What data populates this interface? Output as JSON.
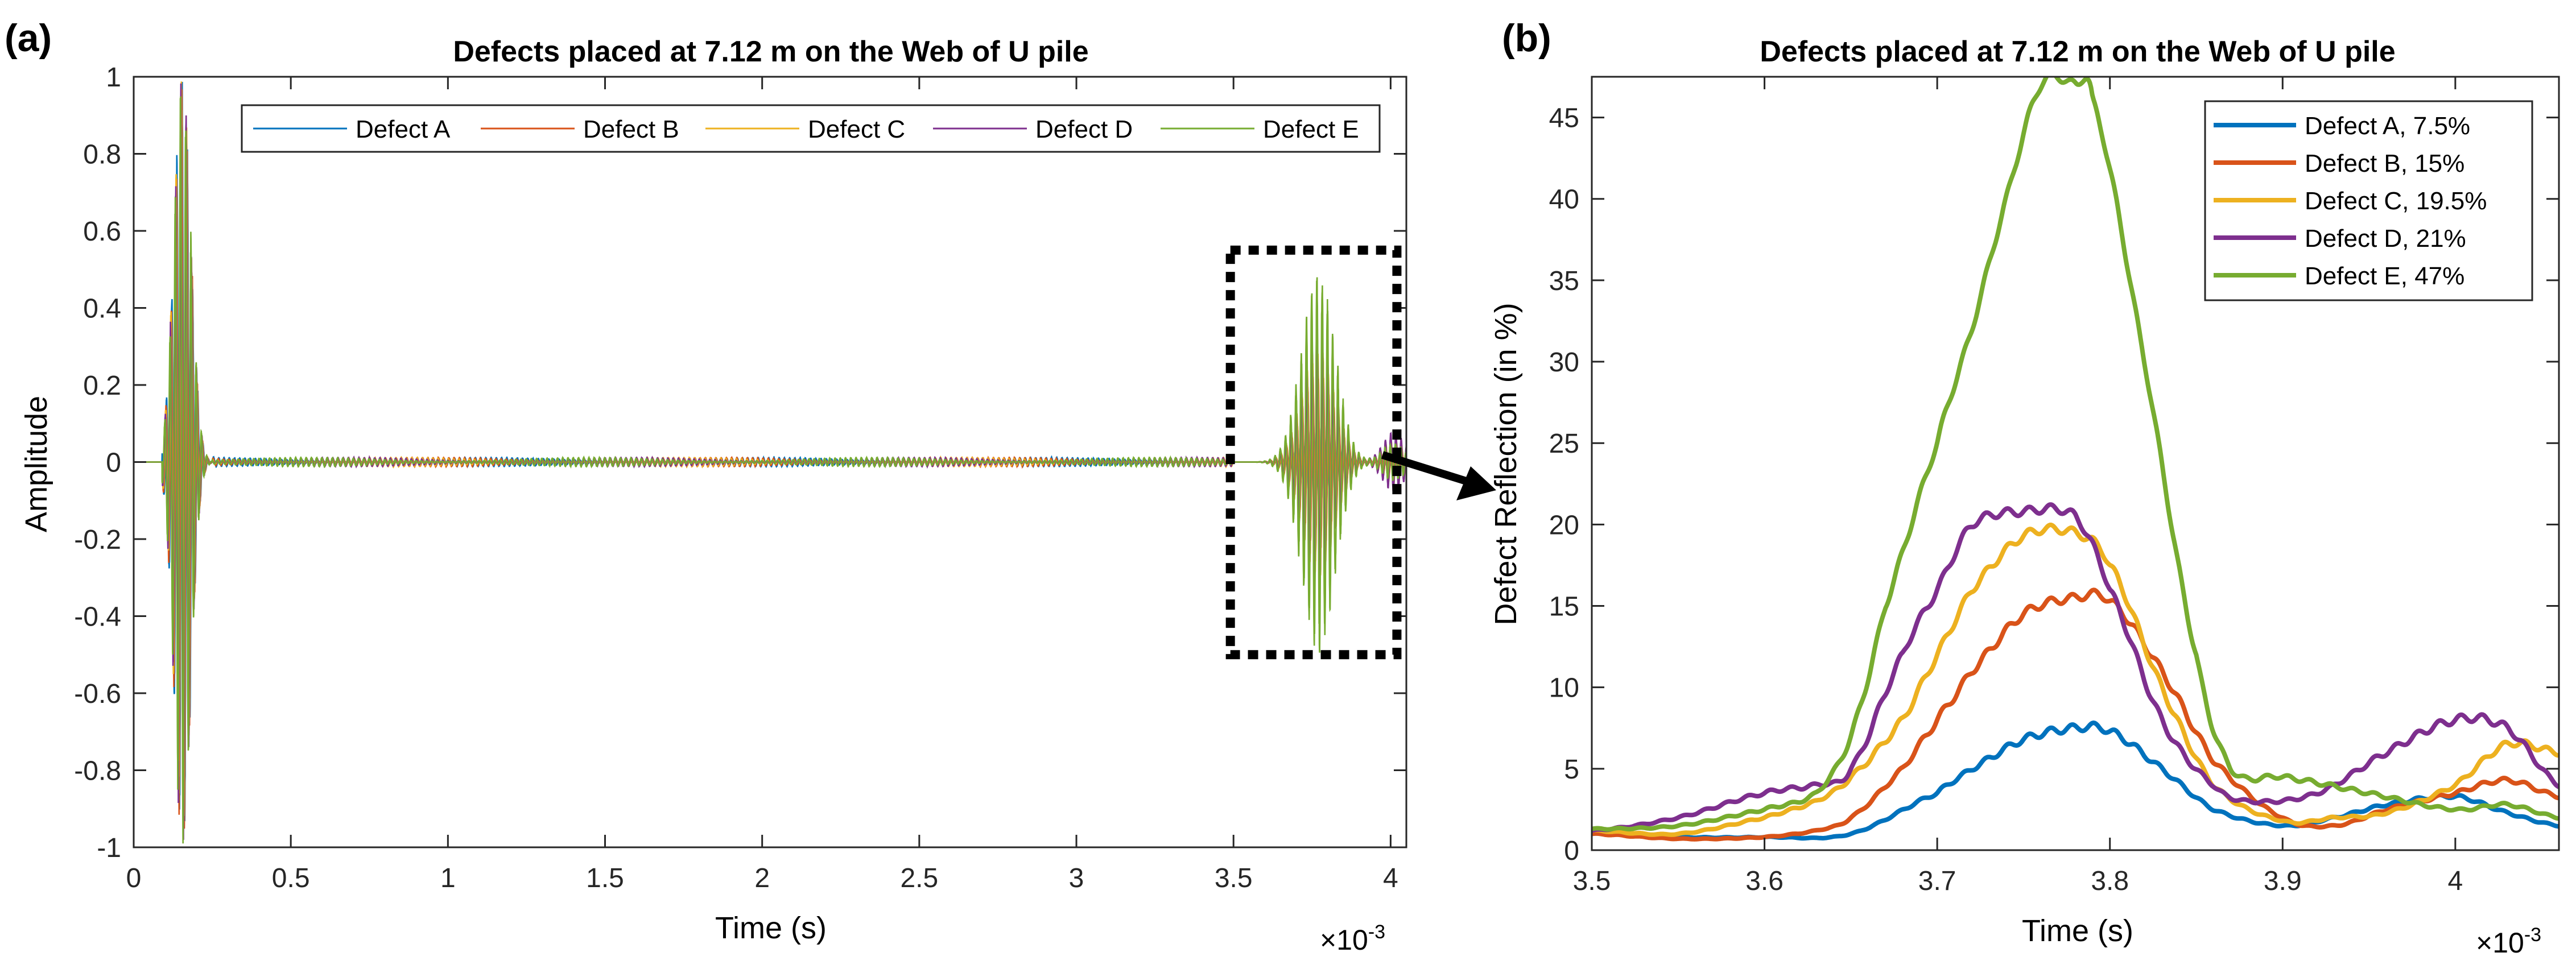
{
  "panel_labels": [
    "(a)",
    "(b)"
  ],
  "colors": {
    "defect_a": "#0072BD",
    "defect_b": "#D95319",
    "defect_c": "#EDB120",
    "defect_d": "#7E2F8E",
    "defect_e": "#77AC30"
  },
  "chart_data": [
    {
      "type": "line",
      "title": "Defects placed at 7.12 m on the Web of U pile",
      "xlabel": "Time (s)",
      "ylabel": "Amplitude",
      "x_exponent_label": "×10",
      "x_exponent": "-3",
      "xlim": [
        0,
        4.05
      ],
      "ylim": [
        -1,
        1
      ],
      "xticks": [
        0,
        0.5,
        1,
        1.5,
        2,
        2.5,
        3,
        3.5,
        4
      ],
      "xtick_labels": [
        "0",
        "0.5",
        "1",
        "1.5",
        "2",
        "2.5",
        "3",
        "3.5",
        "4"
      ],
      "yticks": [
        -1,
        -0.8,
        -0.6,
        -0.4,
        -0.2,
        0,
        0.2,
        0.4,
        0.6,
        0.8,
        1
      ],
      "ytick_labels": [
        "-1",
        "-0.8",
        "-0.6",
        "-0.4",
        "-0.2",
        "0",
        "0.2",
        "0.4",
        "0.6",
        "0.8",
        "1"
      ],
      "legend_position": "top",
      "legend_orientation": "horizontal",
      "grid": false,
      "series": [
        {
          "name": "Defect A",
          "color_key": "defect_a",
          "echo_peak": 0.12,
          "tail_peak": 0.02
        },
        {
          "name": "Defect B",
          "color_key": "defect_b",
          "echo_peak": 0.24,
          "tail_peak": 0.04
        },
        {
          "name": "Defect C",
          "color_key": "defect_c",
          "echo_peak": 0.3,
          "tail_peak": 0.06
        },
        {
          "name": "Defect D",
          "color_key": "defect_d",
          "echo_peak": 0.32,
          "tail_peak": 0.08
        },
        {
          "name": "Defect E",
          "color_key": "defect_e",
          "echo_peak": 0.5,
          "tail_peak": 0.05
        }
      ],
      "signal_model": {
        "carrier_cycles_per_ms": 60,
        "incident": {
          "center": 0.155,
          "width": 0.038,
          "amplitude": 1.0
        },
        "echo": {
          "center": 3.77,
          "width": 0.075
        },
        "tail": {
          "center": 4.01,
          "width": 0.05
        },
        "noise_amplitude": 0.012
      },
      "annotation": {
        "type": "dashed-box",
        "x": [
          3.49,
          4.02
        ],
        "y": [
          -0.5,
          0.55
        ],
        "arrow_to_panel": "(b)"
      }
    },
    {
      "type": "line",
      "title": "Defects placed at 7.12 m on the Web of U pile",
      "xlabel": "Time (s)",
      "ylabel": "Defect Reflection (in %)",
      "x_exponent_label": "×10",
      "x_exponent": "-3",
      "xlim": [
        3.5,
        4.06
      ],
      "ylim": [
        0,
        47.5
      ],
      "xticks": [
        3.5,
        3.6,
        3.7,
        3.8,
        3.9,
        4
      ],
      "xtick_labels": [
        "3.5",
        "3.6",
        "3.7",
        "3.8",
        "3.9",
        "4"
      ],
      "yticks": [
        0,
        5,
        10,
        15,
        20,
        25,
        30,
        35,
        40,
        45
      ],
      "ytick_labels": [
        "0",
        "5",
        "10",
        "15",
        "20",
        "25",
        "30",
        "35",
        "40",
        "45"
      ],
      "legend_position": "top-right",
      "grid": false,
      "series": [
        {
          "name": "Defect A, 7.5%",
          "color_key": "defect_a",
          "x": [
            3.5,
            3.55,
            3.6,
            3.65,
            3.7,
            3.72,
            3.75,
            3.78,
            3.8,
            3.83,
            3.86,
            3.9,
            3.93,
            3.96,
            4.0,
            4.03,
            4.06
          ],
          "y": [
            1.0,
            0.8,
            0.8,
            1.0,
            3.5,
            5.0,
            6.8,
            7.5,
            7.3,
            5.0,
            2.5,
            1.5,
            2.0,
            2.8,
            3.3,
            2.3,
            1.5
          ]
        },
        {
          "name": "Defect B, 15%",
          "color_key": "defect_b",
          "x": [
            3.5,
            3.55,
            3.6,
            3.63,
            3.65,
            3.68,
            3.7,
            3.72,
            3.75,
            3.78,
            3.8,
            3.83,
            3.86,
            3.9,
            3.93,
            3.96,
            4.0,
            4.03,
            4.06
          ],
          "y": [
            1.0,
            0.7,
            0.8,
            1.2,
            2.0,
            5.0,
            8.0,
            11.0,
            14.5,
            15.5,
            15.3,
            11.0,
            5.5,
            2.0,
            1.5,
            2.5,
            3.5,
            4.3,
            3.3
          ]
        },
        {
          "name": "Defect C, 19.5%",
          "color_key": "defect_c",
          "x": [
            3.5,
            3.55,
            3.6,
            3.63,
            3.65,
            3.68,
            3.7,
            3.72,
            3.75,
            3.78,
            3.8,
            3.83,
            3.86,
            3.9,
            3.93,
            3.96,
            4.0,
            4.03,
            4.06
          ],
          "y": [
            1.2,
            1.0,
            2.0,
            3.0,
            4.5,
            8.0,
            12.0,
            16.0,
            19.3,
            19.5,
            17.5,
            10.0,
            4.0,
            1.8,
            2.0,
            2.3,
            4.0,
            6.5,
            6.0
          ]
        },
        {
          "name": "Defect D, 21%",
          "color_key": "defect_d",
          "x": [
            3.5,
            3.55,
            3.6,
            3.63,
            3.65,
            3.68,
            3.7,
            3.72,
            3.75,
            3.78,
            3.8,
            3.83,
            3.86,
            3.88,
            3.92,
            3.96,
            4.0,
            4.03,
            4.06
          ],
          "y": [
            1.2,
            2.0,
            3.5,
            4.0,
            5.0,
            12.0,
            16.0,
            20.0,
            20.8,
            20.5,
            16.0,
            8.0,
            4.0,
            3.0,
            3.5,
            6.0,
            8.0,
            7.5,
            4.0
          ]
        },
        {
          "name": "Defect E, 47%",
          "color_key": "defect_e",
          "x": [
            3.5,
            3.55,
            3.6,
            3.63,
            3.65,
            3.67,
            3.7,
            3.72,
            3.74,
            3.76,
            3.78,
            3.79,
            3.82,
            3.85,
            3.87,
            3.9,
            3.95,
            4.0,
            4.03,
            4.06
          ],
          "y": [
            1.3,
            1.5,
            2.5,
            3.5,
            7.0,
            15.0,
            25.0,
            32.0,
            40.0,
            47.0,
            47.0,
            46.0,
            30.0,
            12.0,
            5.0,
            4.5,
            3.5,
            2.5,
            2.8,
            2.0
          ]
        }
      ]
    }
  ]
}
